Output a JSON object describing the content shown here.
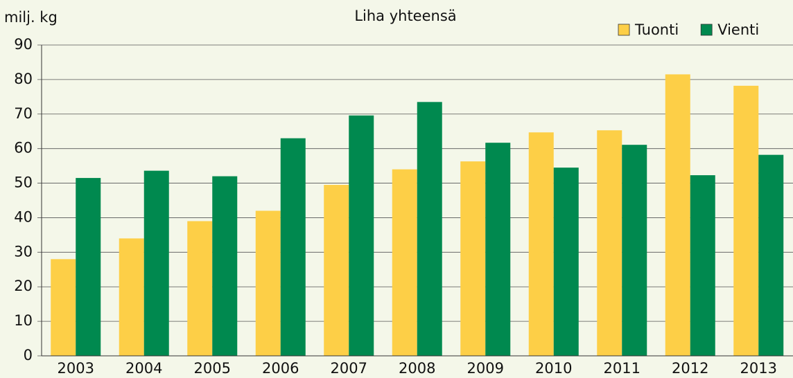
{
  "chart_data": {
    "type": "bar",
    "title": "Liha yhteensä",
    "y_label": "milj. kg",
    "categories": [
      "2003",
      "2004",
      "2005",
      "2006",
      "2007",
      "2008",
      "2009",
      "2010",
      "2011",
      "2012",
      "2013"
    ],
    "series": [
      {
        "name": "Tuonti",
        "color": "#fdcf47",
        "values": [
          28,
          34,
          39,
          42,
          49.5,
          54,
          56.3,
          64.7,
          65.3,
          81.5,
          78.2
        ]
      },
      {
        "name": "Vienti",
        "color": "#00894f",
        "values": [
          51.5,
          53.6,
          52,
          63,
          69.6,
          73.5,
          61.7,
          54.5,
          61.1,
          52.3,
          58.2
        ]
      }
    ],
    "ylim": [
      0,
      90
    ],
    "yticks": [
      0,
      10,
      20,
      30,
      40,
      50,
      60,
      70,
      80,
      90
    ],
    "grid": true,
    "legend": "top-right"
  }
}
